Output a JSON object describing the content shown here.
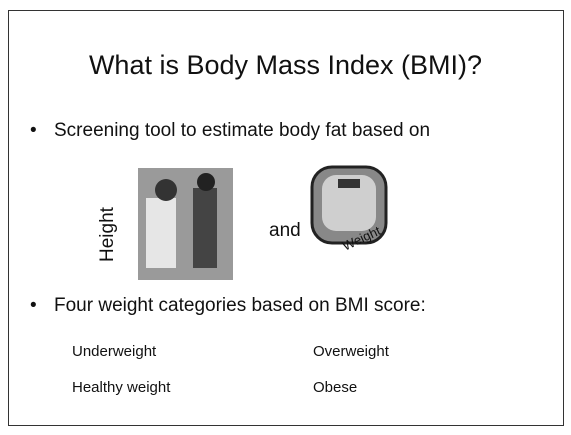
{
  "slide": {
    "title": "What is Body Mass Index (BMI)?",
    "bullets": [
      "Screening tool to estimate body fat based on",
      "Four weight categories based on BMI score:"
    ],
    "height_label": "Height",
    "connector": "and",
    "weight_label": "Weight",
    "categories": [
      "Underweight",
      "Overweight",
      "Healthy weight",
      "Obese"
    ]
  }
}
